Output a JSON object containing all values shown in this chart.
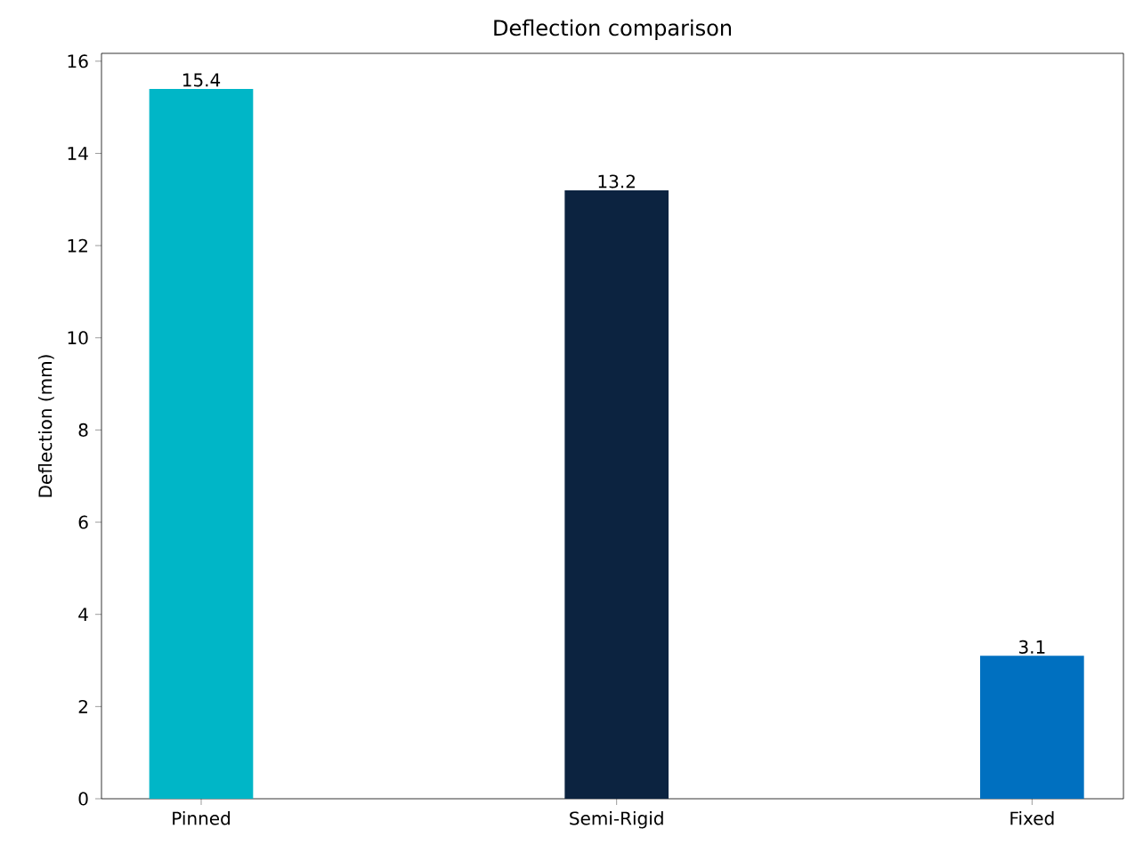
{
  "chart_data": {
    "type": "bar",
    "title": "Deflection comparison",
    "ylabel": "Deflection (mm)",
    "categories": [
      "Pinned",
      "Semi-Rigid",
      "Fixed"
    ],
    "values": [
      15.4,
      13.2,
      3.1
    ],
    "colors": [
      "#00b6c7",
      "#0c2340",
      "#0070c0"
    ],
    "ylim": [
      0,
      16.17
    ],
    "yticks": [
      0,
      2,
      4,
      6,
      8,
      10,
      12,
      14,
      16
    ],
    "data_labels": true,
    "grid": false
  }
}
